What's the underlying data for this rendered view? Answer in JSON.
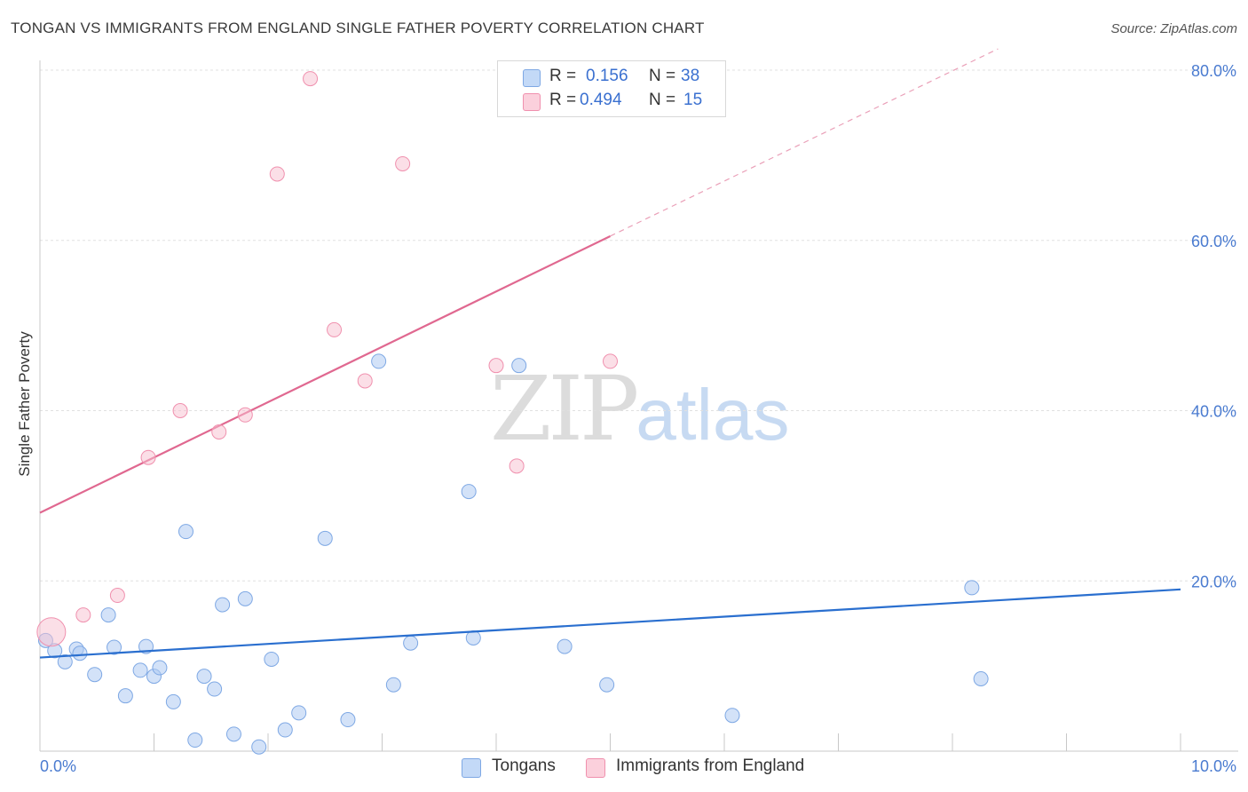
{
  "title": "TONGAN VS IMMIGRANTS FROM ENGLAND SINGLE FATHER POVERTY CORRELATION CHART",
  "source": "Source: ZipAtlas.com",
  "watermark": {
    "zip": "ZIP",
    "atlas": "atlas"
  },
  "legend": {
    "rows": [
      {
        "r_label": "R =",
        "r_value": "0.156",
        "n_label": "N =",
        "n_value": "38",
        "color": "#aecbf3"
      },
      {
        "r_label": "R =",
        "r_value": "0.494",
        "n_label": "N =",
        "n_value": "15",
        "color": "#f8c0d0"
      }
    ]
  },
  "bottom_legend": [
    "Tongans",
    "Immigrants from England"
  ],
  "colors": {
    "tongans": "#aecbf3",
    "tongans_line": "#2a6fcf",
    "england": "#f8c0d0",
    "england_line": "#e06890"
  },
  "chart_data": {
    "type": "scatter",
    "ylabel": "Single Father Poverty",
    "xlim": [
      0,
      10
    ],
    "ylim": [
      0,
      80
    ],
    "x_tick_labels": [
      {
        "value": 0,
        "label": "0.0%"
      },
      {
        "value": 10,
        "label": "10.0%"
      }
    ],
    "y_tick_labels": [
      {
        "value": 20,
        "label": "20.0%"
      },
      {
        "value": 40,
        "label": "40.0%"
      },
      {
        "value": 60,
        "label": "60.0%"
      },
      {
        "value": 80,
        "label": "80.0%"
      }
    ],
    "series": [
      {
        "name": "Tongans",
        "points": [
          [
            0.05,
            13.0
          ],
          [
            0.13,
            11.8
          ],
          [
            0.22,
            10.5
          ],
          [
            0.32,
            12.0
          ],
          [
            0.35,
            11.5
          ],
          [
            0.48,
            9.0
          ],
          [
            0.6,
            16.0
          ],
          [
            0.65,
            12.2
          ],
          [
            0.75,
            6.5
          ],
          [
            0.88,
            9.5
          ],
          [
            0.93,
            12.3
          ],
          [
            1.0,
            8.8
          ],
          [
            1.05,
            9.8
          ],
          [
            1.17,
            5.8
          ],
          [
            1.28,
            25.8
          ],
          [
            1.36,
            1.3
          ],
          [
            1.44,
            8.8
          ],
          [
            1.53,
            7.3
          ],
          [
            1.6,
            17.2
          ],
          [
            1.7,
            2.0
          ],
          [
            1.8,
            17.9
          ],
          [
            2.03,
            10.8
          ],
          [
            2.15,
            2.5
          ],
          [
            2.27,
            4.5
          ],
          [
            2.5,
            25.0
          ],
          [
            2.7,
            3.7
          ],
          [
            2.97,
            45.8
          ],
          [
            3.1,
            7.8
          ],
          [
            3.25,
            12.7
          ],
          [
            3.76,
            30.5
          ],
          [
            3.8,
            13.3
          ],
          [
            4.2,
            45.3
          ],
          [
            4.6,
            12.3
          ],
          [
            4.97,
            7.8
          ],
          [
            6.07,
            4.2
          ],
          [
            8.17,
            19.2
          ],
          [
            8.25,
            8.5
          ],
          [
            1.92,
            0.5
          ]
        ],
        "trend": {
          "x": [
            0,
            10
          ],
          "y": [
            11.0,
            19.0
          ]
        }
      },
      {
        "name": "Immigrants from England",
        "points": [
          [
            0.1,
            14.0
          ],
          [
            0.38,
            16.0
          ],
          [
            0.68,
            18.3
          ],
          [
            0.95,
            34.5
          ],
          [
            1.23,
            40.0
          ],
          [
            1.57,
            37.5
          ],
          [
            1.8,
            39.5
          ],
          [
            2.08,
            67.8
          ],
          [
            2.37,
            79.0
          ],
          [
            2.58,
            49.5
          ],
          [
            2.85,
            43.5
          ],
          [
            3.18,
            69.0
          ],
          [
            4.0,
            45.3
          ],
          [
            4.18,
            33.5
          ],
          [
            5.0,
            45.8
          ]
        ],
        "trend_solid": {
          "x": [
            0,
            5.0
          ],
          "y": [
            28.0,
            60.5
          ]
        },
        "trend_dashed": {
          "x": [
            5.0,
            8.4
          ],
          "y": [
            60.5,
            82.5
          ]
        }
      }
    ]
  }
}
